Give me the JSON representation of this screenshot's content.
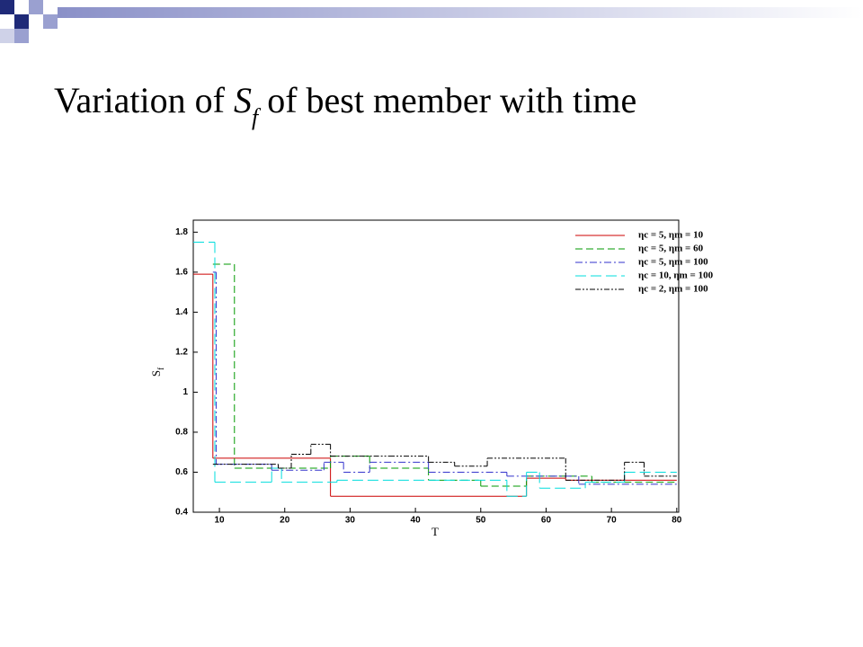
{
  "chart_data": {
    "type": "step",
    "title": {
      "prefix": "Variation of ",
      "symbol": "S",
      "subscript": "f",
      "suffix": " of best member with time"
    },
    "x_label": "T",
    "y_label": {
      "symbol": "S",
      "subscript": "f"
    },
    "xlim": [
      6,
      80.3
    ],
    "ylim": [
      0.4,
      1.86
    ],
    "xticks": [
      10,
      20,
      30,
      40,
      50,
      60,
      70,
      80
    ],
    "yticks": [
      0.4,
      0.6,
      0.8,
      1,
      1.2,
      1.4,
      1.6,
      1.8
    ],
    "legend": "upper right",
    "series": [
      {
        "name": "ηc = 5, ηm = 10",
        "color": "#cc0000",
        "edges": [
          6,
          9,
          27,
          57,
          63,
          80
        ],
        "values": [
          1.59,
          0.67,
          0.48,
          0.57,
          0.56
        ]
      },
      {
        "name": "ηc = 5, ηm = 60",
        "color": "#009900",
        "edges": [
          9,
          12.3,
          27,
          33,
          42,
          50,
          57,
          67,
          80
        ],
        "values": [
          1.64,
          0.62,
          0.68,
          0.62,
          0.56,
          0.53,
          0.58,
          0.55
        ]
      },
      {
        "name": "ηc = 5, ηm = 100",
        "color": "#3333cc",
        "edges": [
          9,
          9.5,
          18,
          26,
          29,
          33,
          42,
          54,
          65,
          80
        ],
        "values": [
          1.6,
          0.64,
          0.61,
          0.65,
          0.6,
          0.65,
          0.6,
          0.58,
          0.54
        ]
      },
      {
        "name": "ηc = 10, ηm = 100",
        "color": "#00dddd",
        "edges": [
          6,
          9.3,
          18,
          19.5,
          28,
          54,
          57,
          59,
          66,
          72,
          80
        ],
        "values": [
          1.75,
          0.55,
          0.62,
          0.55,
          0.56,
          0.48,
          0.6,
          0.52,
          0.55,
          0.6
        ]
      },
      {
        "name": "ηc = 2, ηm = 100",
        "color": "#000000",
        "edges": [
          9,
          19,
          21,
          24,
          27,
          36,
          42,
          46,
          51,
          63,
          72,
          75,
          80
        ],
        "values": [
          0.64,
          0.62,
          0.69,
          0.74,
          0.68,
          0.68,
          0.65,
          0.63,
          0.67,
          0.56,
          0.65,
          0.58
        ]
      }
    ]
  }
}
